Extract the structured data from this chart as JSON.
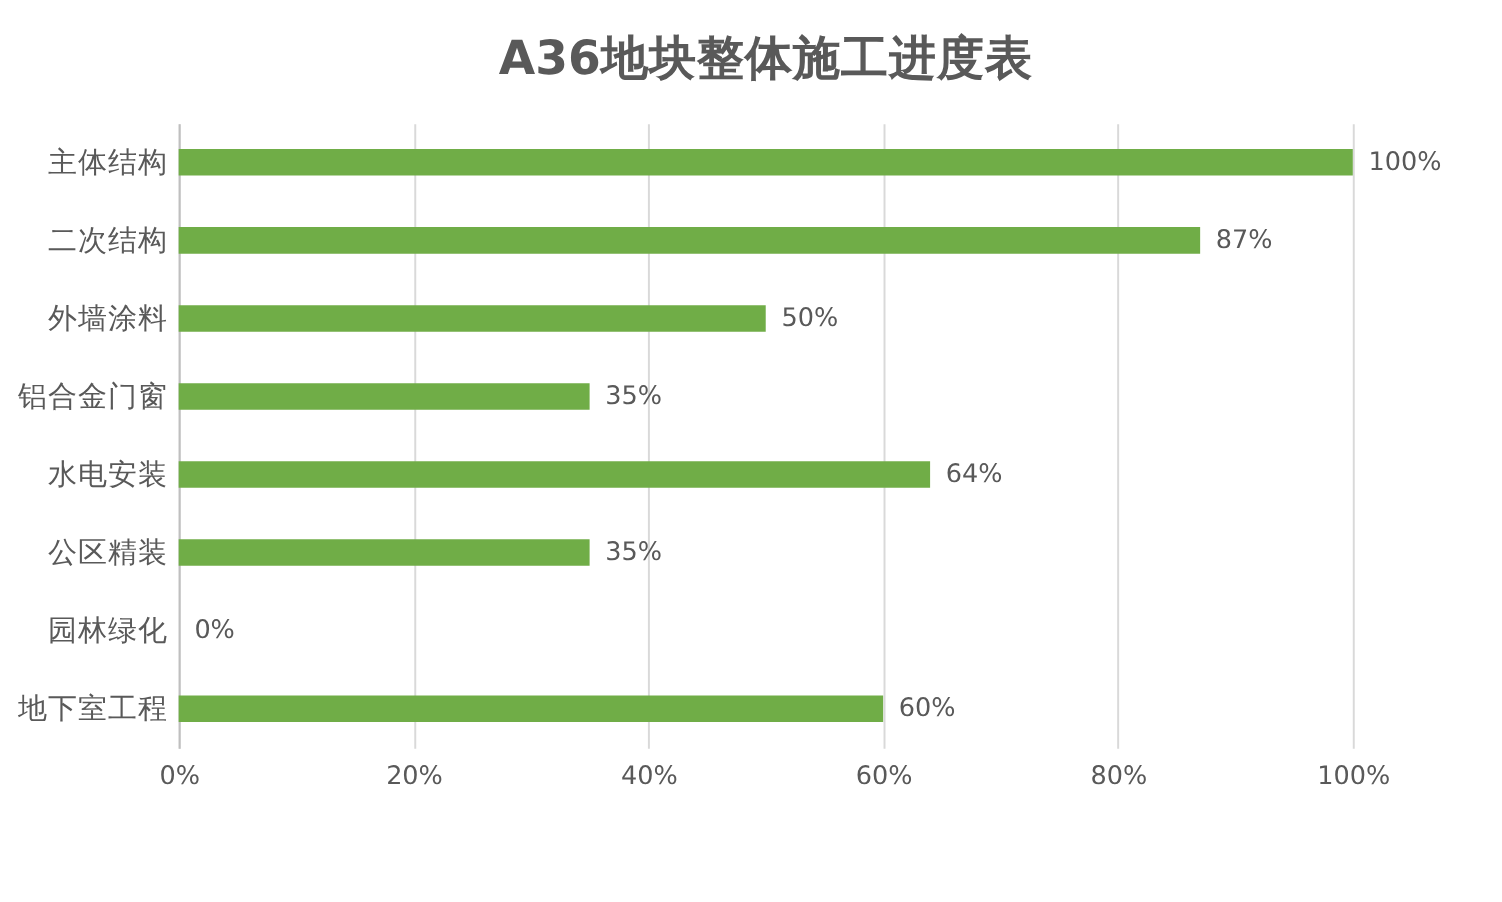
{
  "chart_data": {
    "type": "bar",
    "orientation": "horizontal",
    "title": "A36地块整体施工进度表",
    "categories": [
      "主体结构",
      "二次结构",
      "外墙涂料",
      "铝合金门窗",
      "水电安装",
      "公区精装",
      "园林绿化",
      "地下室工程"
    ],
    "values": [
      100,
      87,
      50,
      35,
      64,
      35,
      0,
      60
    ],
    "value_labels": [
      "100%",
      "87%",
      "50%",
      "35%",
      "64%",
      "35%",
      "0%",
      "60%"
    ],
    "color": "#70ad47",
    "xlim": [
      0,
      100
    ],
    "xticks": [
      {
        "value": 0,
        "label": "0%"
      },
      {
        "value": 20,
        "label": "20%"
      },
      {
        "value": 40,
        "label": "40%"
      },
      {
        "value": 60,
        "label": "60%"
      },
      {
        "value": 80,
        "label": "80%"
      },
      {
        "value": 100,
        "label": "100%"
      }
    ],
    "grid": "x"
  }
}
